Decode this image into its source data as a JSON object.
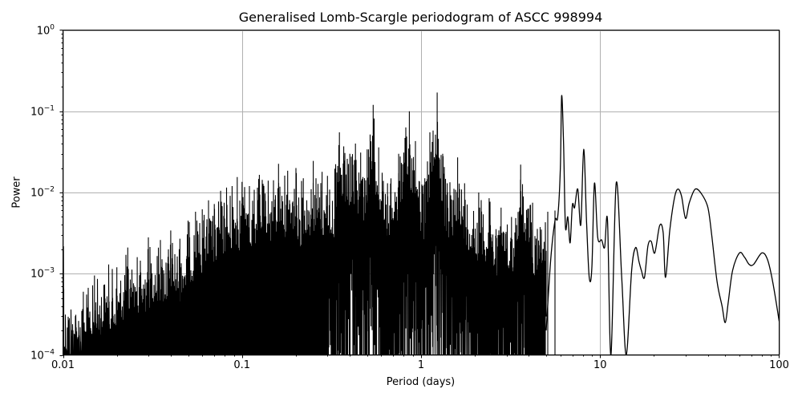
{
  "chart_data": {
    "type": "line",
    "title": "Generalised Lomb-Scargle periodogram of ASCC 998994",
    "xlabel": "Period (days)",
    "ylabel": "Power",
    "xscale": "log",
    "yscale": "log",
    "xlim": [
      0.01,
      100
    ],
    "ylim": [
      0.0001,
      1
    ],
    "grid": true,
    "legend": null,
    "line_color": "#000000",
    "grid_color": "#b0b0b0",
    "x_ticks": [
      {
        "value": 0.01,
        "label": "0.01"
      },
      {
        "value": 0.1,
        "label": "0.1"
      },
      {
        "value": 1,
        "label": "1"
      },
      {
        "value": 10,
        "label": "10"
      },
      {
        "value": 100,
        "label": "100"
      }
    ],
    "y_ticks": [
      {
        "value": 1,
        "base": "10",
        "exp": "0"
      },
      {
        "value": 0.1,
        "base": "10",
        "exp": "−1"
      },
      {
        "value": 0.01,
        "base": "10",
        "exp": "−2"
      },
      {
        "value": 0.001,
        "base": "10",
        "exp": "−3"
      },
      {
        "value": 0.0001,
        "base": "10",
        "exp": "−4"
      }
    ],
    "dense_region": {
      "description": "Dense forest of aliased peaks from 0.01 to ~5 days; envelope rises with period",
      "x_range": [
        0.01,
        5.0
      ],
      "envelope_peaks": [
        {
          "x": 0.0101,
          "y": 0.00065
        },
        {
          "x": 0.013,
          "y": 0.0006
        },
        {
          "x": 0.015,
          "y": 0.00095
        },
        {
          "x": 0.018,
          "y": 0.0013
        },
        {
          "x": 0.02,
          "y": 0.0012
        },
        {
          "x": 0.023,
          "y": 0.0021
        },
        {
          "x": 0.026,
          "y": 0.0016
        },
        {
          "x": 0.03,
          "y": 0.0028
        },
        {
          "x": 0.035,
          "y": 0.0026
        },
        {
          "x": 0.04,
          "y": 0.0034
        },
        {
          "x": 0.045,
          "y": 0.0027
        },
        {
          "x": 0.05,
          "y": 0.0045
        },
        {
          "x": 0.055,
          "y": 0.0058
        },
        {
          "x": 0.06,
          "y": 0.0062
        },
        {
          "x": 0.065,
          "y": 0.008
        },
        {
          "x": 0.07,
          "y": 0.0072
        },
        {
          "x": 0.076,
          "y": 0.0105
        },
        {
          "x": 0.082,
          "y": 0.0115
        },
        {
          "x": 0.088,
          "y": 0.012
        },
        {
          "x": 0.094,
          "y": 0.0155
        },
        {
          "x": 0.1,
          "y": 0.0135
        },
        {
          "x": 0.11,
          "y": 0.012
        },
        {
          "x": 0.125,
          "y": 0.0165
        },
        {
          "x": 0.14,
          "y": 0.014
        },
        {
          "x": 0.16,
          "y": 0.0225
        },
        {
          "x": 0.18,
          "y": 0.0185
        },
        {
          "x": 0.2,
          "y": 0.02
        },
        {
          "x": 0.22,
          "y": 0.015
        },
        {
          "x": 0.25,
          "y": 0.0245
        },
        {
          "x": 0.28,
          "y": 0.018
        },
        {
          "x": 0.3,
          "y": 0.016
        },
        {
          "x": 0.33,
          "y": 0.0196
        },
        {
          "x": 0.35,
          "y": 0.055
        },
        {
          "x": 0.37,
          "y": 0.037
        },
        {
          "x": 0.4,
          "y": 0.03
        },
        {
          "x": 0.43,
          "y": 0.04
        },
        {
          "x": 0.46,
          "y": 0.031
        },
        {
          "x": 0.5,
          "y": 0.034
        },
        {
          "x": 0.54,
          "y": 0.12
        },
        {
          "x": 0.58,
          "y": 0.036
        },
        {
          "x": 0.65,
          "y": 0.013
        },
        {
          "x": 0.75,
          "y": 0.03
        },
        {
          "x": 0.86,
          "y": 0.1
        },
        {
          "x": 0.93,
          "y": 0.043
        },
        {
          "x": 1.05,
          "y": 0.015
        },
        {
          "x": 1.12,
          "y": 0.055
        },
        {
          "x": 1.23,
          "y": 0.17
        },
        {
          "x": 1.4,
          "y": 0.013
        },
        {
          "x": 1.6,
          "y": 0.027
        },
        {
          "x": 1.75,
          "y": 0.013
        },
        {
          "x": 2.1,
          "y": 0.01
        },
        {
          "x": 2.4,
          "y": 0.0085
        },
        {
          "x": 2.8,
          "y": 0.0065
        },
        {
          "x": 3.2,
          "y": 0.005
        },
        {
          "x": 3.6,
          "y": 0.022
        },
        {
          "x": 4.2,
          "y": 0.0075
        },
        {
          "x": 5.1,
          "y": 0.0058
        },
        {
          "x": 5.6,
          "y": 0.006
        }
      ]
    },
    "smooth_region": {
      "x": [
        5.0,
        5.3,
        5.6,
        5.8,
        6.0,
        6.1,
        6.25,
        6.4,
        6.6,
        6.8,
        7.0,
        7.2,
        7.5,
        7.8,
        8.1,
        8.4,
        8.7,
        9.0,
        9.3,
        9.7,
        10.2,
        10.6,
        11.0,
        11.5,
        12.3,
        13.2,
        14.0,
        15.0,
        15.8,
        16.5,
        17.0,
        17.7,
        18.5,
        19.3,
        20.2,
        21.5,
        22.5,
        23.2,
        24.5,
        26.0,
        27.2,
        28.5,
        30.0,
        31.5,
        34.0,
        37.0,
        40.0,
        42.0,
        45.0,
        48.0,
        50.0,
        52.0,
        55.0,
        60.0,
        64.0,
        68.0,
        72.0,
        80.0,
        86.0,
        92.0,
        100.0
      ],
      "y": [
        0.0002,
        0.0015,
        0.0045,
        0.005,
        0.02,
        0.155,
        0.04,
        0.0038,
        0.005,
        0.0024,
        0.007,
        0.0065,
        0.011,
        0.004,
        0.034,
        0.0045,
        0.0009,
        0.0012,
        0.013,
        0.0028,
        0.0026,
        0.0021,
        0.0045,
        0.0001,
        0.013,
        0.0009,
        0.0001,
        0.0011,
        0.0021,
        0.0014,
        0.0011,
        0.0009,
        0.0022,
        0.0025,
        0.0018,
        0.0039,
        0.0032,
        0.0009,
        0.0034,
        0.0085,
        0.011,
        0.009,
        0.0048,
        0.0075,
        0.011,
        0.0095,
        0.0065,
        0.003,
        0.0008,
        0.0004,
        0.00025,
        0.00045,
        0.0011,
        0.0018,
        0.0016,
        0.0013,
        0.0013,
        0.0018,
        0.0015,
        0.0008,
        0.00026
      ]
    },
    "notable_peaks": [
      {
        "period": 1.23,
        "power": 0.17
      },
      {
        "period": 6.1,
        "power": 0.155
      },
      {
        "period": 0.54,
        "power": 0.12
      },
      {
        "period": 0.86,
        "power": 0.1
      },
      {
        "period": 8.1,
        "power": 0.034
      },
      {
        "period": 9.3,
        "power": 0.013
      },
      {
        "period": 12.3,
        "power": 0.013
      },
      {
        "period": 27.2,
        "power": 0.011
      },
      {
        "period": 34.0,
        "power": 0.011
      },
      {
        "period": 60.0,
        "power": 0.0018
      },
      {
        "period": 80.0,
        "power": 0.0018
      }
    ]
  }
}
